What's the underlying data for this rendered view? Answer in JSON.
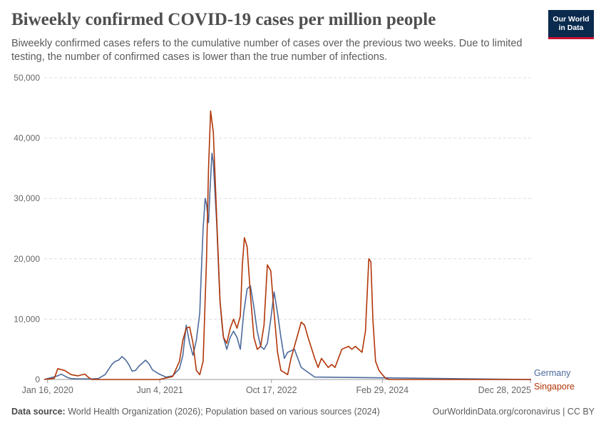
{
  "header": {
    "title": "Biweekly confirmed COVID-19 cases per million people",
    "subtitle": "Biweekly confirmed cases refers to the cumulative number of cases over the previous two weeks. Due to limited testing, the number of confirmed cases is lower than the true number of infections.",
    "logo_line1": "Our World",
    "logo_line2": "in Data"
  },
  "footer": {
    "source_label": "Data source:",
    "source_text": "World Health Organization (2026); Population based on various sources (2024)",
    "credit": "OurWorldinData.org/coronavirus | CC BY"
  },
  "colors": {
    "germany": "#4c6a9c",
    "singapore": "#b13507",
    "grid": "#dddddd",
    "axis_text": "#666666"
  },
  "chart_data": {
    "type": "line",
    "title": "Biweekly confirmed COVID-19 cases per million people",
    "xlabel": "",
    "ylabel": "",
    "x_unit": "months since Jan 2020",
    "xlim": [
      0,
      72
    ],
    "ylim": [
      0,
      50000
    ],
    "y_ticks": [
      0,
      10000,
      20000,
      30000,
      40000,
      50000
    ],
    "y_tick_labels": [
      "0",
      "10,000",
      "20,000",
      "30,000",
      "40,000",
      "50,000"
    ],
    "x_ticks": [
      0.5,
      17.1,
      33.6,
      50.0,
      71.9
    ],
    "x_tick_labels": [
      "Jan 16, 2020",
      "Jun 4, 2021",
      "Oct 17, 2022",
      "Feb 29, 2024",
      "Dec 28, 2025"
    ],
    "grid": true,
    "series": [
      {
        "name": "Germany",
        "x": [
          0,
          2,
          2.5,
          3,
          3.5,
          4,
          5,
          7,
          8,
          9,
          10,
          10.5,
          11,
          11.5,
          12,
          12.5,
          13,
          13.5,
          14,
          15,
          15.5,
          16,
          17,
          18,
          19,
          20,
          20.5,
          21,
          21.5,
          22,
          22.5,
          23,
          23.2,
          23.5,
          23.8,
          24,
          24.3,
          24.5,
          24.8,
          25,
          25.3,
          25.5,
          25.8,
          26,
          26.3,
          26.5,
          27,
          27.5,
          28,
          28.5,
          29,
          29.5,
          30,
          30.5,
          31,
          31.5,
          32,
          32.5,
          33,
          33.5,
          34,
          34.5,
          35,
          35.5,
          36,
          37,
          38,
          40,
          72
        ],
        "values": [
          0,
          600,
          900,
          600,
          300,
          150,
          100,
          100,
          150,
          800,
          2500,
          3000,
          3200,
          3800,
          3300,
          2500,
          1400,
          1500,
          2200,
          3200,
          2600,
          1600,
          900,
          400,
          600,
          1800,
          4000,
          9000,
          6000,
          4000,
          6500,
          11000,
          17000,
          25000,
          30000,
          29000,
          26000,
          31000,
          37500,
          36000,
          30000,
          26000,
          18000,
          13000,
          9000,
          7000,
          5000,
          7000,
          8000,
          7000,
          5000,
          11000,
          15000,
          15500,
          12000,
          8000,
          5500,
          5000,
          6000,
          10000,
          14500,
          11000,
          7000,
          3500,
          4500,
          5000,
          2000,
          400,
          0
        ]
      },
      {
        "name": "Singapore",
        "x": [
          0,
          1.5,
          2,
          3,
          4,
          5,
          6,
          6.5,
          7,
          8,
          10,
          14,
          17,
          19,
          20,
          20.5,
          21,
          21.5,
          22,
          22.5,
          23,
          23.5,
          24,
          24.3,
          24.6,
          25,
          25.5,
          26,
          26.5,
          27,
          27.5,
          28,
          28.5,
          29,
          29.3,
          29.6,
          30,
          30.5,
          31,
          31.5,
          32,
          32.5,
          33,
          33.5,
          34,
          34.5,
          35,
          36,
          36.5,
          37,
          38,
          38.5,
          39,
          40,
          40.5,
          41,
          42,
          42.5,
          43,
          44,
          45,
          45.5,
          46,
          47,
          47.5,
          48,
          48.3,
          48.6,
          49,
          49.5,
          50,
          50.5,
          51,
          72
        ],
        "values": [
          0,
          200,
          1800,
          1500,
          800,
          600,
          900,
          400,
          0,
          0,
          0,
          0,
          0,
          500,
          3000,
          6500,
          8500,
          8700,
          6000,
          1500,
          800,
          3000,
          20000,
          35000,
          44500,
          41000,
          27000,
          13000,
          7000,
          6000,
          8500,
          10000,
          8500,
          10500,
          19000,
          23500,
          22000,
          14000,
          7000,
          5000,
          5500,
          9000,
          19000,
          18000,
          11000,
          4500,
          1500,
          800,
          3500,
          5500,
          9500,
          9000,
          7000,
          3500,
          2000,
          3500,
          2000,
          2500,
          2000,
          5000,
          5500,
          5000,
          5500,
          4500,
          8000,
          20000,
          19500,
          10000,
          3000,
          1500,
          800,
          200,
          0,
          0
        ]
      }
    ]
  }
}
